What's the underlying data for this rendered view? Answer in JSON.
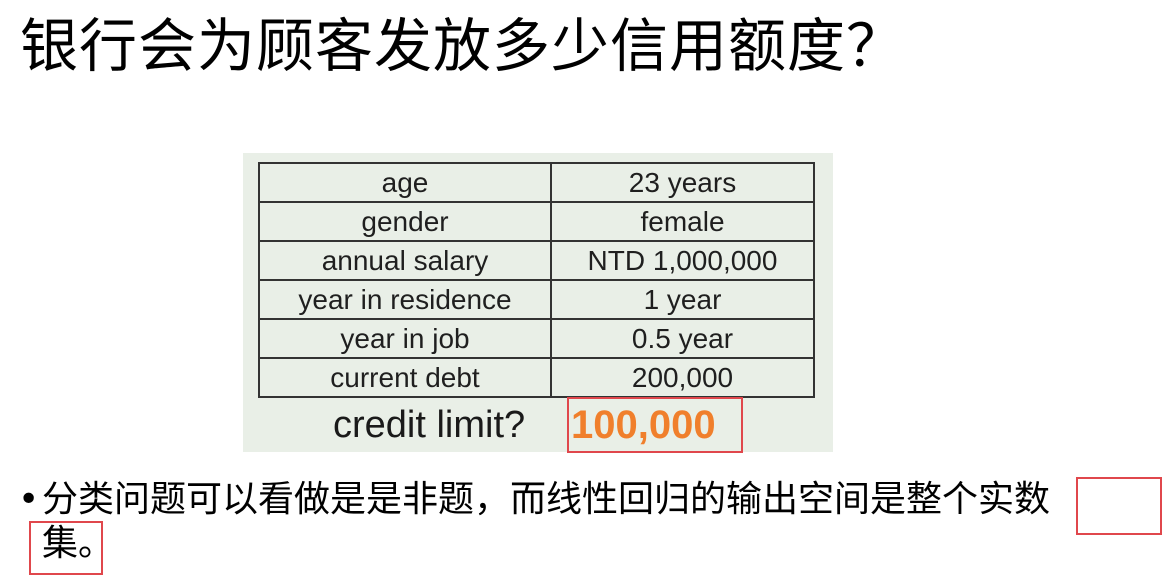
{
  "slide": {
    "title": "银行会为顾客发放多少信用额度？"
  },
  "figure": {
    "rows": [
      {
        "key": "age",
        "value": "23 years"
      },
      {
        "key": "gender",
        "value": "female"
      },
      {
        "key": "annual salary",
        "value": "NTD 1,000,000"
      },
      {
        "key": "year in residence",
        "value": "1 year"
      },
      {
        "key": "year in job",
        "value": "0.5 year"
      },
      {
        "key": "current debt",
        "value": "200,000"
      }
    ],
    "question": "credit limit?",
    "answer": "100,000",
    "answer_color": "#f07f2c",
    "highlight_color": "#e0474c"
  },
  "bullet": {
    "marker": "•",
    "line1": "分类问题可以看做是是非题，而线性回归的输出空间是整个实数",
    "line2": "集。"
  }
}
